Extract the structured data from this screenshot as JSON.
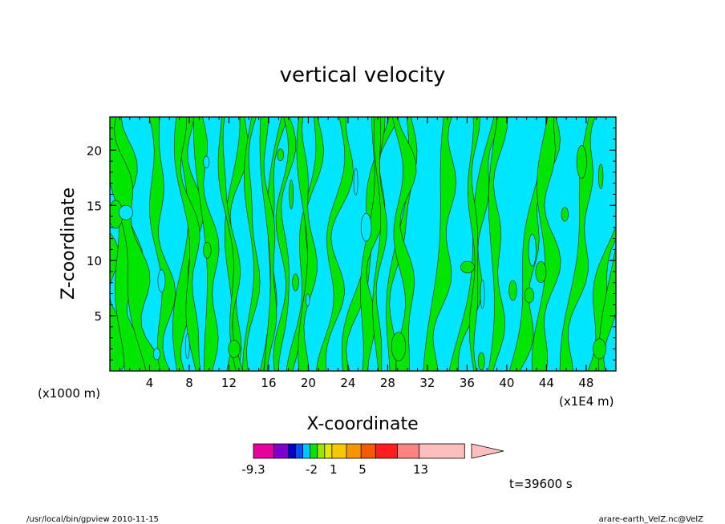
{
  "chart_data": {
    "type": "heatmap",
    "title": "vertical velocity",
    "xlabel": "X-coordinate",
    "ylabel": "Z-coordinate",
    "x_unit_left": "(x1000 m)",
    "x_unit_right": "(x1E4 m)",
    "xlim": [
      0,
      51
    ],
    "ylim": [
      0,
      23
    ],
    "x_ticks": [
      4,
      8,
      12,
      16,
      20,
      24,
      28,
      32,
      36,
      40,
      44,
      48
    ],
    "y_ticks": [
      5,
      10,
      15,
      20
    ],
    "colors": {
      "positive": "#00e600",
      "negative": "#00e6ff",
      "contour": "#1a1a1a",
      "frame": "#000000"
    },
    "colorbar": {
      "labels": [
        {
          "text": "-9.3",
          "pos": 0
        },
        {
          "text": "-2",
          "pos": 0.2667
        },
        {
          "text": "1",
          "pos": 0.3667
        },
        {
          "text": "5",
          "pos": 0.5
        },
        {
          "text": "13",
          "pos": 0.7667
        }
      ],
      "segments": [
        {
          "color": "#e6009e",
          "width": 0.0933
        },
        {
          "color": "#7d00cc",
          "width": 0.0667
        },
        {
          "color": "#0000c8",
          "width": 0.0333
        },
        {
          "color": "#0050ff",
          "width": 0.0333
        },
        {
          "color": "#00c8ff",
          "width": 0.0333
        },
        {
          "color": "#00e600",
          "width": 0.0333
        },
        {
          "color": "#9be600",
          "width": 0.0333
        },
        {
          "color": "#e6e600",
          "width": 0.0333
        },
        {
          "color": "#f5c800",
          "width": 0.0667
        },
        {
          "color": "#f59600",
          "width": 0.0667
        },
        {
          "color": "#f55a00",
          "width": 0.0667
        },
        {
          "color": "#ff1e1e",
          "width": 0.1
        },
        {
          "color": "#ff8282",
          "width": 0.1
        },
        {
          "color": "#ffbebe",
          "width": 0.2067
        }
      ],
      "arrow_color": "#ffbebe"
    },
    "time_label": "t=39600 s",
    "footer_left": "/usr/local/bin/gpview   2010-11-15",
    "footer_right": "arare-earth_VelZ.nc@VelZ"
  }
}
